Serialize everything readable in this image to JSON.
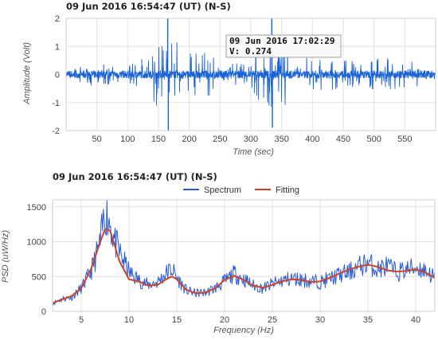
{
  "charts": [
    {
      "title": "09 Jun 2016  16:54:47 (UT) (N-S)",
      "tooltip": {
        "time": "09 Jun 2016  17:02:29",
        "value": "V: 0.274"
      },
      "xlabel": "Time (sec)",
      "ylabel": "Amplitude (Volt)",
      "xticks": [
        "50",
        "100",
        "150",
        "200",
        "250",
        "300",
        "350",
        "400",
        "450",
        "500",
        "550"
      ],
      "yticks": [
        "2",
        "1",
        "0",
        "-1",
        "-2"
      ]
    },
    {
      "title": "09 Jun 2016  16:54:47 (UT) (N-S)",
      "xlabel": "Frequency (Hz)",
      "ylabel": "PSD (uW/Hz)",
      "legend": [
        "Spectrum",
        "Fitting"
      ],
      "xticks": [
        "5",
        "10",
        "15",
        "20",
        "25",
        "30",
        "35",
        "40"
      ],
      "yticks": [
        "1500",
        "1000",
        "500",
        "0"
      ]
    }
  ],
  "chart_data": [
    {
      "type": "line",
      "title": "09 Jun 2016  16:54:47 (UT) (N-S)",
      "xlabel": "Time (sec)",
      "ylabel": "Amplitude (Volt)",
      "xlim": [
        0,
        600
      ],
      "ylim": [
        -2,
        2
      ],
      "grid": true,
      "color": "#1a63d8",
      "series": [
        {
          "values_sample": [
            [
              0,
              0.05
            ],
            [
              20,
              -0.2
            ],
            [
              40,
              0.35
            ],
            [
              60,
              -0.4
            ],
            [
              80,
              0.3
            ],
            [
              100,
              -0.3
            ],
            [
              120,
              0.5
            ],
            [
              140,
              -0.6
            ],
            [
              165,
              2.0
            ],
            [
              166,
              -2.0
            ],
            [
              190,
              0.4
            ],
            [
              210,
              -0.8
            ],
            [
              240,
              0.3
            ],
            [
              270,
              -0.4
            ],
            [
              300,
              0.3
            ],
            [
              334,
              2.0
            ],
            [
              335,
              -1.9
            ],
            [
              360,
              0.3
            ],
            [
              390,
              -0.3
            ],
            [
              420,
              0.6
            ],
            [
              450,
              -0.4
            ],
            [
              480,
              0.5
            ],
            [
              510,
              -0.6
            ],
            [
              540,
              0.5
            ],
            [
              570,
              -0.2
            ],
            [
              600,
              0.1
            ]
          ]
        }
      ],
      "annotation": {
        "x": 330,
        "y": 0.274,
        "text": "09 Jun 2016  17:02:29"
      }
    },
    {
      "type": "line",
      "title": "09 Jun 2016  16:54:47 (UT) (N-S)",
      "xlabel": "Frequency (Hz)",
      "ylabel": "PSD (uW/Hz)",
      "xlim": [
        2,
        42
      ],
      "ylim": [
        0,
        1600
      ],
      "grid": true,
      "legend_position": "top-center",
      "series": [
        {
          "name": "Spectrum",
          "color": "#2a5bd7",
          "x": [
            2,
            3,
            4,
            5,
            6,
            7,
            7.5,
            8,
            8.5,
            9,
            10,
            11,
            12,
            13,
            14,
            14.5,
            15,
            16,
            17,
            18,
            19,
            20,
            21,
            22,
            23,
            24,
            25,
            26,
            27,
            28,
            29,
            30,
            31,
            32,
            33,
            34,
            35,
            36,
            37,
            38,
            39,
            40,
            41,
            42
          ],
          "y": [
            110,
            180,
            200,
            330,
            560,
            980,
            1450,
            1280,
            1000,
            850,
            560,
            450,
            380,
            420,
            560,
            610,
            480,
            300,
            260,
            270,
            330,
            430,
            540,
            460,
            370,
            330,
            390,
            440,
            470,
            460,
            430,
            420,
            470,
            520,
            560,
            640,
            700,
            600,
            650,
            560,
            600,
            630,
            590,
            480
          ]
        },
        {
          "name": "Fitting",
          "color": "#c9442a",
          "x": [
            2,
            3,
            4,
            5,
            6,
            7,
            7.5,
            8,
            8.5,
            9,
            10,
            11,
            12,
            13,
            14,
            14.5,
            15,
            16,
            17,
            18,
            19,
            20,
            21,
            22,
            23,
            24,
            25,
            26,
            27,
            28,
            29,
            30,
            31,
            32,
            33,
            34,
            35,
            36,
            37,
            38,
            39,
            40,
            41,
            42
          ],
          "y": [
            120,
            170,
            220,
            330,
            600,
            1000,
            1180,
            1160,
            950,
            720,
            460,
            430,
            370,
            380,
            470,
            500,
            460,
            310,
            260,
            270,
            330,
            450,
            510,
            450,
            370,
            340,
            380,
            430,
            460,
            450,
            420,
            430,
            480,
            540,
            600,
            640,
            670,
            640,
            590,
            570,
            580,
            600,
            560,
            480
          ]
        }
      ]
    }
  ]
}
